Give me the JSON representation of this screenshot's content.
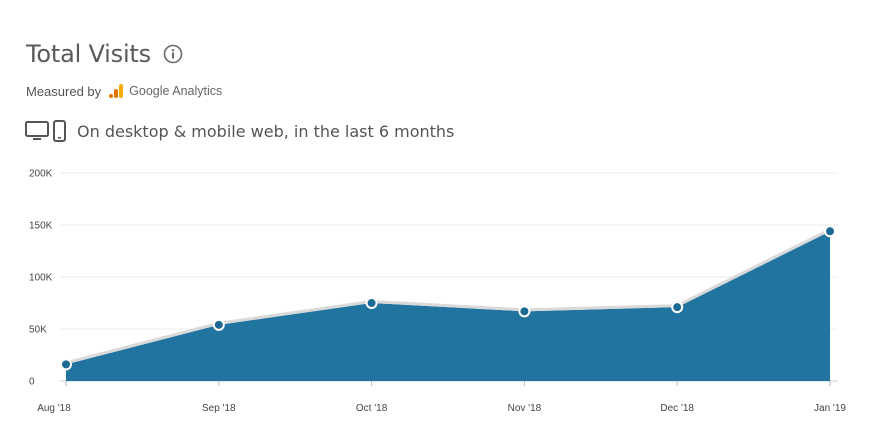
{
  "header": {
    "title": "Total Visits",
    "info_icon": "info-circle-icon",
    "measured_by_label": "Measured by",
    "provider_logo_icon": "google-analytics-logo-icon",
    "provider_name": "Google Analytics",
    "device_icons": [
      "desktop-icon",
      "mobile-icon"
    ],
    "scope_text": "On desktop & mobile web, in the last 6 months"
  },
  "colors": {
    "area_fill": "#2274a0",
    "line_stroke": "#d9d9d9",
    "point_fill": "#1a6a93",
    "grid": "#ececec",
    "ga_yellow": "#f9ab00",
    "ga_orange": "#e37400"
  },
  "chart_data": {
    "type": "area",
    "title": "",
    "xlabel": "",
    "ylabel": "",
    "categories": [
      "Aug '18",
      "Sep '18",
      "Oct '18",
      "Nov '18",
      "Dec '18",
      "Jan '19"
    ],
    "series": [
      {
        "values": [
          16000,
          54000,
          75000,
          67000,
          71000,
          144000
        ]
      }
    ],
    "ylim": [
      0,
      200000
    ],
    "yticks": [
      0,
      50000,
      100000,
      150000,
      200000
    ],
    "ytick_labels": [
      "0",
      "50K",
      "100K",
      "150K",
      "200K"
    ],
    "grid": true,
    "legend": "none"
  }
}
